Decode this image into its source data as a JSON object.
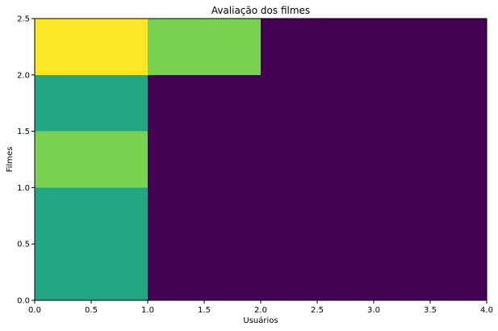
{
  "chart_data": {
    "type": "heatmap",
    "title": "Avaliação dos filmes",
    "xlabel": "Usuários",
    "ylabel": "Filmes",
    "xlim": [
      0,
      4
    ],
    "ylim": [
      0,
      2.5
    ],
    "x_edges": [
      0,
      1,
      2,
      3,
      4
    ],
    "y_edges": [
      0,
      1,
      1.5,
      2,
      2.5
    ],
    "x_ticks": [
      "0.0",
      "0.5",
      "1.0",
      "1.5",
      "2.0",
      "2.5",
      "3.0",
      "3.5",
      "4.0"
    ],
    "y_ticks": [
      "0.0",
      "0.5",
      "1.0",
      "1.5",
      "2.0",
      "2.5"
    ],
    "grid": false,
    "colormap": "viridis",
    "value_range": [
      0,
      5
    ],
    "values_bottom_to_top": [
      [
        3,
        0,
        0,
        0
      ],
      [
        4,
        0,
        0,
        0
      ],
      [
        3,
        0,
        0,
        0
      ],
      [
        5,
        4,
        0,
        0
      ]
    ],
    "colors": {
      "0": "#440154",
      "3": "#21a784",
      "4": "#7ad151",
      "5": "#fde725"
    }
  }
}
